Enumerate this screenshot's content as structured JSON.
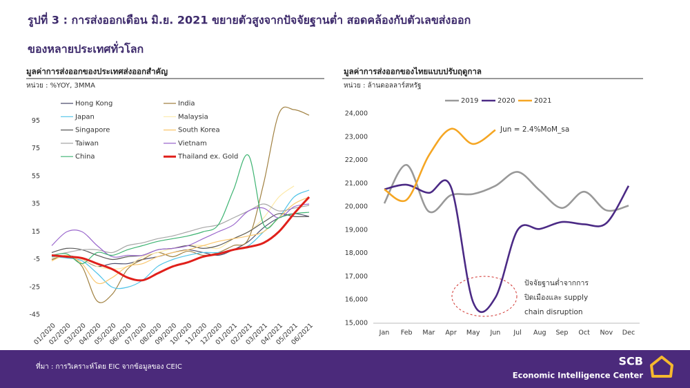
{
  "title": "รูปที่ 3 : การส่งออกเดือน มิ.ย. 2021 ขยายตัวสูงจากปัจจัยฐานต่ำ สอดคล้องกับตัวเลขส่งออก",
  "title_line2": "ของหลายประเทศทั่วโลก",
  "footer": "ที่มา : การวิเคราะห์โดย EIC จากข้อมูลของ CEIC",
  "logo": "SCB",
  "logo_sub": "Economic Intelligence Center",
  "chart_data": [
    {
      "type": "line",
      "title": "มูลค่าการส่งออกของประเทศส่งออกสำคัญ",
      "subtitle": "หน่วย : %YOY, 3MMA",
      "categories": [
        "01/2020",
        "02/2020",
        "03/2020",
        "04/2020",
        "05/2020",
        "06/2020",
        "07/2020",
        "08/2020",
        "09/2020",
        "10/2020",
        "11/2020",
        "12/2020",
        "01/2021",
        "02/2021",
        "03/2021",
        "04/2021",
        "05/2021",
        "06/2021"
      ],
      "ylim": [
        -45,
        115
      ],
      "yticks": [
        -45,
        -25,
        -5,
        15,
        35,
        55,
        75,
        95
      ],
      "series": [
        {
          "name": "Hong Kong",
          "color": "#4b4b6b",
          "values": [
            -5,
            -2,
            -5,
            -10,
            -8,
            -8,
            -5,
            -3,
            0,
            2,
            0,
            -2,
            2,
            8,
            18,
            25,
            28,
            26
          ]
        },
        {
          "name": "India",
          "color": "#a08040",
          "values": [
            -5,
            -3,
            -10,
            -35,
            -30,
            -12,
            -5,
            0,
            -3,
            1,
            -2,
            0,
            5,
            10,
            50,
            100,
            103,
            99
          ]
        },
        {
          "name": "Japan",
          "color": "#4ec3e8",
          "values": [
            -3,
            -4,
            -6,
            -15,
            -25,
            -25,
            -20,
            -10,
            -5,
            -2,
            0,
            0,
            2,
            5,
            15,
            25,
            40,
            45
          ]
        },
        {
          "name": "Malaysia",
          "color": "#fde9a8",
          "values": [
            -4,
            -2,
            -5,
            -10,
            -12,
            -10,
            -3,
            0,
            3,
            5,
            5,
            3,
            10,
            15,
            25,
            40,
            48,
            null
          ]
        },
        {
          "name": "Singapore",
          "color": "#595959",
          "values": [
            0,
            3,
            2,
            -2,
            -5,
            -3,
            -2,
            2,
            3,
            5,
            3,
            5,
            10,
            15,
            22,
            28,
            26,
            26
          ]
        },
        {
          "name": "South Korea",
          "color": "#f9c56a",
          "values": [
            -6,
            -2,
            -8,
            -22,
            -18,
            -10,
            -8,
            -3,
            0,
            2,
            5,
            8,
            10,
            12,
            15,
            25,
            35,
            40
          ]
        },
        {
          "name": "Taiwan",
          "color": "#a6a6a6",
          "values": [
            -2,
            0,
            2,
            2,
            0,
            5,
            7,
            10,
            12,
            15,
            18,
            20,
            25,
            30,
            35,
            30,
            32,
            34
          ]
        },
        {
          "name": "Vietnam",
          "color": "#9966cc",
          "values": [
            5,
            15,
            15,
            5,
            -3,
            -2,
            -2,
            2,
            3,
            5,
            10,
            15,
            20,
            30,
            32,
            25,
            33,
            35
          ]
        },
        {
          "name": "China",
          "color": "#3cb371",
          "values": [
            -2,
            -1,
            -8,
            0,
            -2,
            2,
            5,
            8,
            10,
            12,
            15,
            20,
            45,
            70,
            20,
            25,
            28,
            29
          ]
        },
        {
          "name": "Thailand ex. Gold",
          "color": "#e0201b",
          "values": [
            -2,
            -3,
            -4,
            -8,
            -12,
            -18,
            -20,
            -15,
            -10,
            -7,
            -3,
            -1,
            2,
            4,
            7,
            15,
            28,
            40
          ]
        }
      ]
    },
    {
      "type": "line",
      "title": "มูลค่าการส่งออกของไทยแบบปรับฤดูกาล",
      "subtitle": "หน่วย : ล้านดอลลาร์สหรัฐ",
      "categories": [
        "Jan",
        "Feb",
        "Mar",
        "Apr",
        "May",
        "Jun",
        "Jul",
        "Aug",
        "Sep",
        "Oct",
        "Nov",
        "Dec"
      ],
      "ylim": [
        15000,
        24000
      ],
      "yticks": [
        {
          "value": 15000,
          "label": "15,000"
        },
        {
          "value": 16000,
          "label": "16,000"
        },
        {
          "value": 17000,
          "label": "17,000"
        },
        {
          "value": 18000,
          "label": "18,000"
        },
        {
          "value": 19000,
          "label": "19,000"
        },
        {
          "value": 20000,
          "label": "20,000"
        },
        {
          "value": 21000,
          "label": "21,000"
        },
        {
          "value": 22000,
          "label": "22,000"
        },
        {
          "value": 23000,
          "label": "23,000"
        },
        {
          "value": 24000,
          "label": "24,000"
        }
      ],
      "series": [
        {
          "name": "2019",
          "color": "#999999",
          "values": [
            20150,
            21800,
            19800,
            20500,
            20550,
            20900,
            21500,
            20700,
            19950,
            20650,
            19850,
            20050
          ]
        },
        {
          "name": "2020",
          "color": "#4b2a85",
          "values": [
            20750,
            20950,
            20600,
            20850,
            15900,
            16100,
            19000,
            19050,
            19350,
            19250,
            19300,
            20900
          ]
        },
        {
          "name": "2021",
          "color": "#f5a623",
          "values": [
            20750,
            20300,
            22200,
            23350,
            22700,
            23300,
            null,
            null,
            null,
            null,
            null,
            null
          ]
        }
      ],
      "annotations": [
        "Jun = 2.4%MoM_sa",
        "ปัจจัยฐานต่ำจากการ",
        "ปิดเมืองและ supply",
        "chain disruption"
      ]
    }
  ]
}
